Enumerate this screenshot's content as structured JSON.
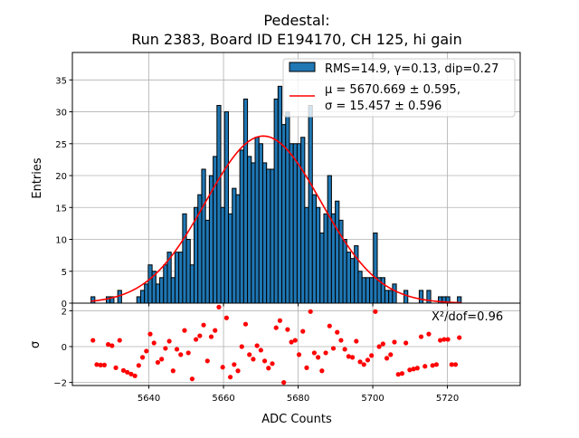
{
  "chart_data": [
    {
      "type": "bar",
      "title_line1": "Pedestal:",
      "title_line2": "Run 2383, Board ID E194170, CH 125, hi gain",
      "xlabel": "",
      "ylabel": "Entries",
      "xlim": [
        5619.5,
        5739.5
      ],
      "ylim": [
        0,
        39.3
      ],
      "yticks": [
        "0",
        "5",
        "10",
        "15",
        "20",
        "25",
        "30",
        "35"
      ],
      "grid": true,
      "bin_range": [
        5624.5,
        5723.7
      ],
      "counts": [
        1,
        0,
        0,
        0,
        1,
        1,
        0,
        2,
        0,
        0,
        0,
        0,
        1,
        2,
        3,
        6,
        5,
        3,
        4,
        6,
        8,
        4,
        8,
        8,
        14,
        10,
        6,
        15,
        17,
        21,
        13,
        20,
        23,
        31,
        15,
        30,
        14,
        18,
        17,
        24,
        32,
        23,
        22,
        26,
        25,
        22,
        21,
        21,
        32,
        34,
        28,
        30,
        25,
        25,
        25,
        26,
        15,
        31,
        17,
        15,
        11,
        14,
        20,
        14,
        16,
        13,
        10,
        8,
        7,
        9,
        5,
        4,
        4,
        4,
        11,
        4,
        4,
        2,
        2,
        3,
        0,
        0,
        2,
        0,
        0,
        0,
        2,
        0,
        2,
        0,
        0,
        1,
        1,
        1,
        0,
        0,
        1
      ],
      "bar_color": "#1f77b4",
      "fit": {
        "mu": 5670.669,
        "sigma": 15.457,
        "amplitude": 26.2,
        "color": "#ff0000"
      },
      "legend": {
        "placement": "top-right",
        "hist_label": "RMS=14.9, γ=0.13, dip=0.27",
        "fit_label_line1": "μ = 5670.669 ± 0.595,",
        "fit_label_line2": "σ = 15.457 ± 0.596"
      }
    },
    {
      "type": "scatter",
      "xlabel": "ADC Counts",
      "ylabel": "σ",
      "xlim": [
        5619.5,
        5739.5
      ],
      "ylim": [
        -2.17,
        2.42
      ],
      "xticks": [
        "5640",
        "5660",
        "5680",
        "5700",
        "5720"
      ],
      "yticks": [
        "2",
        "0",
        "−2"
      ],
      "grid": true,
      "point_color": "#ff0000",
      "annotation": "X²/dof=0.96",
      "residuals": [
        0.35,
        -1.0,
        -1.03,
        -1.03,
        0.12,
        0.05,
        -1.18,
        0.35,
        -1.33,
        -1.43,
        -1.53,
        -1.63,
        -1.05,
        -0.6,
        -0.25,
        0.7,
        0.2,
        -0.88,
        -0.7,
        -0.1,
        0.3,
        -1.35,
        -0.15,
        -0.45,
        0.9,
        -0.35,
        -1.8,
        0.4,
        0.6,
        1.2,
        -0.8,
        0.55,
        0.9,
        2.2,
        -1.15,
        1.6,
        -1.7,
        -1.0,
        -1.35,
        0.0,
        1.25,
        -0.45,
        -0.7,
        0.05,
        -0.2,
        -0.8,
        -1.2,
        -0.95,
        1.05,
        1.45,
        -2.0,
        0.95,
        0.25,
        0.35,
        -0.45,
        0.85,
        -1.18,
        1.95,
        -0.35,
        -0.6,
        -1.35,
        -0.35,
        1.15,
        -0.1,
        0.8,
        0.35,
        -0.15,
        -0.55,
        -0.6,
        0.3,
        -0.85,
        -1.0,
        -0.75,
        -0.5,
        1.95,
        0.0,
        0.15,
        -0.65,
        -0.45,
        0.25,
        -1.55,
        -1.5,
        0.2,
        -1.3,
        -1.25,
        -1.2,
        0.55,
        -1.1,
        0.7,
        -1.05,
        -1.0,
        0.35,
        0.4,
        0.4,
        -1.0,
        -1.0,
        0.5
      ]
    }
  ]
}
